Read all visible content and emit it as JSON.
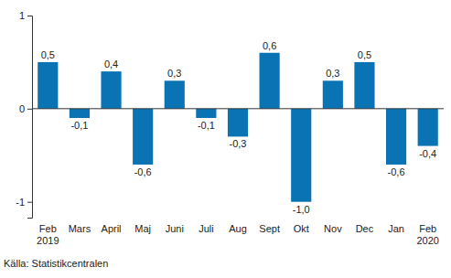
{
  "chart_data": {
    "type": "bar",
    "categories": [
      "Feb 2019",
      "Mars",
      "April",
      "Maj",
      "Juni",
      "Juli",
      "Aug",
      "Sept",
      "Okt",
      "Nov",
      "Dec",
      "Jan",
      "Feb 2020"
    ],
    "values": [
      0.5,
      -0.1,
      0.4,
      -0.6,
      0.3,
      -0.1,
      -0.3,
      0.6,
      -1.0,
      0.3,
      0.5,
      -0.6,
      -0.4
    ],
    "value_labels": [
      "0,5",
      "-0,1",
      "0,4",
      "-0,6",
      "0,3",
      "-0,1",
      "-0,3",
      "0,6",
      "-1,0",
      "0,3",
      "0,5",
      "-0,6",
      "-0,4"
    ],
    "color": "#0a73b3",
    "ylim": [
      -1.17,
      1
    ],
    "yticks": [
      -1,
      0,
      1
    ],
    "grid": false,
    "data_labels": true,
    "source": "Källa: Statistikcentralen"
  }
}
